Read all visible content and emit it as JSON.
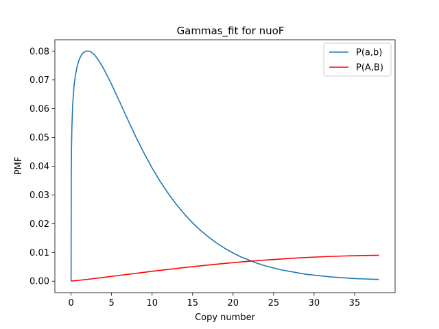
{
  "chart_data": {
    "type": "line",
    "title": "Gammas_fit for nuoF",
    "xlabel": "Copy number",
    "ylabel": "PMF",
    "xlim": [
      -2,
      40
    ],
    "ylim": [
      -0.004,
      0.084
    ],
    "xticks": [
      0,
      5,
      10,
      15,
      20,
      25,
      30,
      35
    ],
    "yticks": [
      0.0,
      0.01,
      0.02,
      0.03,
      0.04,
      0.05,
      0.06,
      0.07,
      0.08
    ],
    "ytick_labels": [
      "0.00",
      "0.01",
      "0.02",
      "0.03",
      "0.04",
      "0.05",
      "0.06",
      "0.07",
      "0.08"
    ],
    "grid": false,
    "legend_position": "top-right",
    "series": [
      {
        "name": "P(a,b)",
        "color": "#1f77b4",
        "x": [
          0,
          0.02,
          0.05,
          0.1,
          0.2,
          0.35,
          0.5,
          0.75,
          1,
          1.25,
          1.5,
          1.75,
          2,
          2.25,
          2.5,
          2.75,
          3,
          3.5,
          4,
          4.5,
          5,
          5.5,
          6,
          7,
          8,
          9,
          10,
          11,
          12,
          13,
          14,
          15,
          16,
          17,
          18,
          19,
          20,
          21,
          22,
          23,
          24,
          25,
          26,
          27,
          28,
          29,
          30,
          31,
          32,
          33,
          34,
          35,
          36,
          37,
          38
        ],
        "values": [
          0,
          0.036,
          0.0456,
          0.0535,
          0.0614,
          0.0675,
          0.071,
          0.0748,
          0.0771,
          0.0786,
          0.0795,
          0.0799,
          0.0801,
          0.08,
          0.0797,
          0.0791,
          0.0784,
          0.0764,
          0.074,
          0.0713,
          0.0685,
          0.0654,
          0.0624,
          0.0562,
          0.0502,
          0.0446,
          0.0394,
          0.0347,
          0.0305,
          0.0267,
          0.0233,
          0.0203,
          0.0176,
          0.0153,
          0.0132,
          0.0114,
          0.0098,
          0.0084,
          0.0073,
          0.0062,
          0.0053,
          0.0046,
          0.0039,
          0.0034,
          0.0029,
          0.0024,
          0.0021,
          0.0018,
          0.0015,
          0.0013,
          0.0011,
          0.0009,
          0.0008,
          0.0007,
          0.0006
        ]
      },
      {
        "name": "P(A,B)",
        "color": "#ff0000",
        "x": [
          0,
          2,
          4,
          6,
          8,
          10,
          12,
          14,
          16,
          18,
          20,
          22,
          24,
          26,
          28,
          30,
          32,
          34,
          36,
          38
        ],
        "values": [
          0,
          0.00062,
          0.00131,
          0.00202,
          0.00273,
          0.00343,
          0.0041,
          0.00474,
          0.00535,
          0.00591,
          0.00644,
          0.00692,
          0.00735,
          0.00774,
          0.00808,
          0.00837,
          0.00861,
          0.00879,
          0.00893,
          0.00901
        ]
      }
    ]
  }
}
